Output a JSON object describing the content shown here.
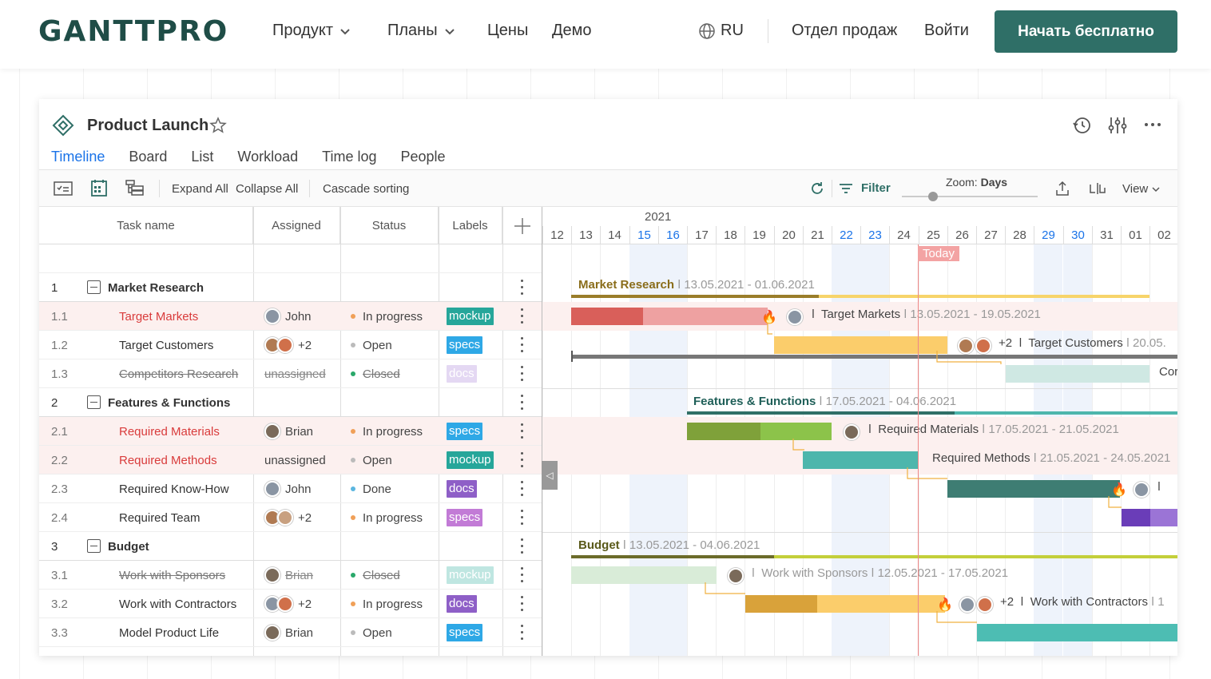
{
  "nav": {
    "logo": "GANTTPRO",
    "product": "Продукт",
    "plans": "Планы",
    "prices": "Цены",
    "demo": "Демо",
    "lang": "RU",
    "sales": "Отдел продаж",
    "login": "Войти",
    "cta": "Начать бесплатно"
  },
  "project": {
    "title": "Product Launch",
    "tabs": [
      "Timeline",
      "Board",
      "List",
      "Workload",
      "Time log",
      "People"
    ]
  },
  "toolbar": {
    "expand_all": "Expand All",
    "collapse_all": "Collapse All",
    "cascade": "Cascade sorting",
    "filter": "Filter",
    "zoom_label": "Zoom:",
    "zoom_value": "Days",
    "view": "View"
  },
  "columns": {
    "task": "Task name",
    "assigned": "Assigned",
    "status": "Status",
    "labels": "Labels"
  },
  "timeline": {
    "year": "2021",
    "days": [
      "12",
      "13",
      "14",
      "15",
      "16",
      "17",
      "18",
      "19",
      "20",
      "21",
      "22",
      "23",
      "24",
      "25",
      "26",
      "27",
      "28",
      "29",
      "30",
      "31",
      "01",
      "02"
    ],
    "today": "Today"
  },
  "rows": [
    {
      "num": "1",
      "name": "Market Research",
      "group": true
    },
    {
      "num": "1.1",
      "name": "Target Markets",
      "assigned": "John",
      "status": "In progress",
      "label": "mockup"
    },
    {
      "num": "1.2",
      "name": "Target Customers",
      "assigned": "+2",
      "status": "Open",
      "label": "specs"
    },
    {
      "num": "1.3",
      "name": "Competitors Research",
      "assigned": "unassigned",
      "status": "Closed",
      "label": "docs"
    },
    {
      "num": "2",
      "name": "Features & Functions",
      "group": true
    },
    {
      "num": "2.1",
      "name": "Required Materials",
      "assigned": "Brian",
      "status": "In progress",
      "label": "specs"
    },
    {
      "num": "2.2",
      "name": "Required Methods",
      "assigned": "unassigned",
      "status": "Open",
      "label": "mockup"
    },
    {
      "num": "2.3",
      "name": "Required Know-How",
      "assigned": "John",
      "status": "Done",
      "label": "docs"
    },
    {
      "num": "2.4",
      "name": "Required Team",
      "assigned": "+2",
      "status": "In progress",
      "label": "specs"
    },
    {
      "num": "3",
      "name": "Budget",
      "group": true
    },
    {
      "num": "3.1",
      "name": "Work with Sponsors",
      "assigned": "Brian",
      "status": "Closed",
      "label": "mockup"
    },
    {
      "num": "3.2",
      "name": "Work with Contractors",
      "assigned": "+2",
      "status": "In progress",
      "label": "docs"
    },
    {
      "num": "3.3",
      "name": "Model Product Life",
      "assigned": "Brian",
      "status": "Open",
      "label": "specs"
    }
  ],
  "gantt": {
    "g1_name": "Market Research",
    "g1_dates": "13.05.2021 - 01.06.2021",
    "t11_name": "Target Markets",
    "t11_dates": "13.05.2021 - 19.05.2021",
    "t12_plus": "+2",
    "t12_name": "Target Customers",
    "t12_dates": "20.05.",
    "t13_name": "Cor",
    "g2_name": "Features & Functions",
    "g2_dates": "17.05.2021 - 04.06.2021",
    "t21_name": "Required Materials",
    "t21_dates": "17.05.2021 - 21.05.2021",
    "t22_name": "Required Methods",
    "t22_dates": "21.05.2021 - 24.05.2021",
    "g3_name": "Budget",
    "g3_dates": "13.05.2021 - 04.06.2021",
    "t31_name": "Work with Sponsors",
    "t31_dates": "12.05.2021 - 17.05.2021",
    "t32_plus": "+2",
    "t32_name": "Work with Contractors",
    "t32_dates": "1"
  },
  "colors": {
    "brand": "#2f6f67",
    "accent": "#1a73e8",
    "mockup": "#26a69a",
    "specs": "#2ea8e6",
    "docs": "#8e5fc7",
    "in_progress": "#f0a058",
    "open": "#bbbbbb",
    "closed": "#2aa86a",
    "done": "#5bb6e0"
  }
}
